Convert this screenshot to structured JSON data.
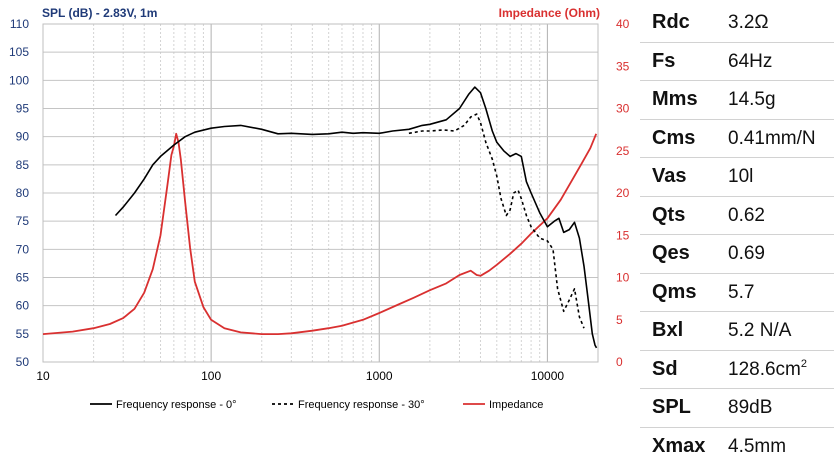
{
  "chart_data": {
    "type": "line",
    "title_left": "SPL (dB) - 2.83V, 1m",
    "title_right": "Impedance (Ohm)",
    "x_scale": "log",
    "xlim": [
      10,
      20000
    ],
    "x_ticks": [
      10,
      100,
      1000,
      10000
    ],
    "x_tick_labels": [
      "10",
      "100",
      "1000",
      "10000"
    ],
    "y_left": {
      "lim": [
        50,
        110
      ],
      "ticks": [
        50,
        55,
        60,
        65,
        70,
        75,
        80,
        85,
        90,
        95,
        100,
        105,
        110
      ],
      "color": "#1f3a78"
    },
    "y_right": {
      "lim": [
        0,
        40
      ],
      "ticks": [
        0,
        5,
        10,
        15,
        20,
        25,
        30,
        35,
        40
      ],
      "color": "#d93030"
    },
    "grid": true,
    "legend_position": "bottom",
    "series": [
      {
        "name": "Frequency response - 0°",
        "axis": "left",
        "style": "solid",
        "color": "#000000",
        "x": [
          27,
          30,
          35,
          40,
          45,
          50,
          60,
          70,
          80,
          100,
          120,
          150,
          200,
          250,
          300,
          400,
          500,
          600,
          700,
          800,
          1000,
          1200,
          1500,
          1800,
          2000,
          2500,
          3000,
          3400,
          3700,
          4000,
          4300,
          4700,
          5000,
          5500,
          6000,
          6500,
          7000,
          7500,
          8000,
          9000,
          10000,
          11000,
          11700,
          12500,
          13500,
          14500,
          15500,
          16500,
          17500,
          18500,
          19200,
          19600
        ],
        "y": [
          76,
          77.5,
          80,
          82.5,
          85,
          86.5,
          88.5,
          90,
          90.8,
          91.5,
          91.8,
          92,
          91.3,
          90.5,
          90.6,
          90.4,
          90.5,
          90.8,
          90.6,
          90.7,
          90.6,
          91,
          91.3,
          92,
          92.2,
          93,
          95,
          97.5,
          98.8,
          97.8,
          95,
          91,
          89,
          87.5,
          86.5,
          87,
          86.5,
          82,
          80,
          76.5,
          74,
          75,
          75.5,
          73,
          73.5,
          74.8,
          72,
          67,
          61,
          55,
          53,
          52.5
        ]
      },
      {
        "name": "Frequency response - 30°",
        "axis": "left",
        "style": "dashed",
        "color": "#000000",
        "x": [
          1500,
          1800,
          2000,
          2400,
          2800,
          3200,
          3500,
          3800,
          4000,
          4300,
          4700,
          5000,
          5300,
          5700,
          6000,
          6300,
          6700,
          7000,
          7500,
          8000,
          9000,
          10000,
          10800,
          11500,
          12500,
          13500,
          14500,
          15500,
          16500
        ],
        "y": [
          90.6,
          91,
          91,
          91.2,
          91,
          92,
          93.5,
          94,
          92.5,
          89,
          86,
          83,
          79,
          76,
          77,
          80,
          80.5,
          79,
          76,
          74,
          72,
          71.5,
          70,
          63,
          59,
          61,
          63,
          58,
          56
        ]
      },
      {
        "name": "Impedance",
        "axis": "right",
        "style": "solid",
        "color": "#d93030",
        "x": [
          10,
          15,
          20,
          25,
          30,
          35,
          40,
          45,
          50,
          55,
          58,
          60,
          62,
          64,
          66,
          70,
          75,
          80,
          90,
          100,
          120,
          150,
          200,
          250,
          300,
          400,
          500,
          600,
          800,
          1000,
          1300,
          1600,
          2000,
          2500,
          3000,
          3500,
          3800,
          4000,
          4500,
          5000,
          6000,
          7000,
          8000,
          10000,
          12000,
          14000,
          16000,
          18000,
          19500
        ],
        "y": [
          3.3,
          3.6,
          4.0,
          4.5,
          5.2,
          6.3,
          8.2,
          11,
          15,
          21,
          24.5,
          25.5,
          27,
          26,
          24,
          19,
          13.5,
          9.5,
          6.5,
          5.0,
          4.0,
          3.5,
          3.3,
          3.3,
          3.4,
          3.7,
          4.0,
          4.3,
          5.0,
          5.8,
          6.8,
          7.6,
          8.5,
          9.3,
          10.3,
          10.8,
          10.3,
          10.2,
          10.8,
          11.5,
          12.8,
          14.0,
          15.2,
          17.0,
          19.2,
          21.5,
          23.5,
          25.3,
          27
        ]
      }
    ]
  },
  "parameters": [
    {
      "name": "Rdc",
      "value": "3.2Ω"
    },
    {
      "name": "Fs",
      "value": "64Hz"
    },
    {
      "name": "Mms",
      "value": "14.5g"
    },
    {
      "name": "Cms",
      "value": "0.41mm/N"
    },
    {
      "name": "Vas",
      "value": "10l"
    },
    {
      "name": "Qts",
      "value": "0.62"
    },
    {
      "name": "Qes",
      "value": "0.69"
    },
    {
      "name": "Qms",
      "value": "5.7"
    },
    {
      "name": "Bxl",
      "value": "5.2 N/A"
    },
    {
      "name": "Sd",
      "value": "128.6cm",
      "superscript": "2"
    },
    {
      "name": "SPL",
      "value": "89dB"
    },
    {
      "name": "Xmax",
      "value": "4.5mm"
    }
  ]
}
